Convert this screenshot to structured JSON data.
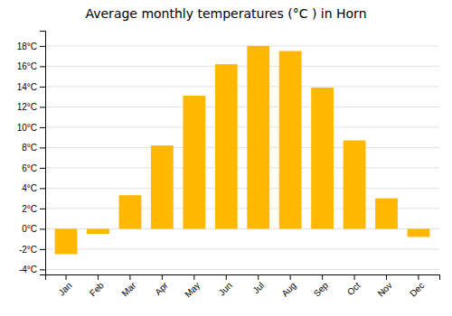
{
  "chart_data": {
    "type": "bar",
    "title": "Average monthly temperatures (°C ) in Horn",
    "categories": [
      "Jan",
      "Feb",
      "Mar",
      "Apr",
      "May",
      "Jun",
      "Jul",
      "Aug",
      "Sep",
      "Oct",
      "Nov",
      "Dec"
    ],
    "values": [
      -2.5,
      -0.5,
      3.3,
      8.2,
      13.1,
      16.2,
      18.0,
      17.5,
      13.9,
      8.7,
      3.0,
      -0.8
    ],
    "color": "#FFB800",
    "ylim": [
      -4.5,
      19.5
    ],
    "yticks": [
      {
        "value": -4,
        "label": "-4°C"
      },
      {
        "value": -2,
        "label": "-2°C"
      },
      {
        "value": 0,
        "label": "0°C"
      },
      {
        "value": 2,
        "label": "2°C"
      },
      {
        "value": 4,
        "label": "4°C"
      },
      {
        "value": 6,
        "label": "6°C"
      },
      {
        "value": 8,
        "label": "8°C"
      },
      {
        "value": 10,
        "label": "10°C"
      },
      {
        "value": 12,
        "label": "12°C"
      },
      {
        "value": 14,
        "label": "14°C"
      },
      {
        "value": 16,
        "label": "16°C"
      },
      {
        "value": 18,
        "label": "18°C"
      }
    ],
    "grid": true
  }
}
